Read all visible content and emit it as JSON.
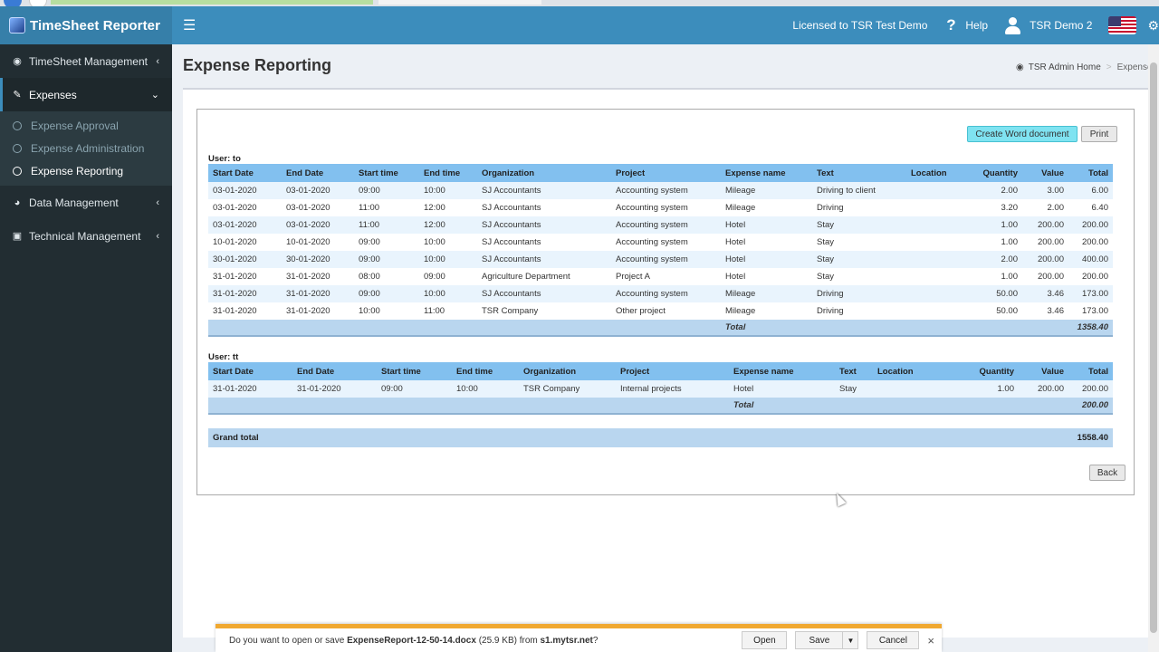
{
  "app": {
    "name": "TimeSheet Reporter",
    "license": "Licensed to TSR Test Demo",
    "help_label": "Help",
    "user_name": "TSR Demo 2",
    "burger_icon": "menu-icon",
    "flag_icon": "us-flag-icon"
  },
  "sidebar": {
    "items": [
      {
        "label": "TimeSheet Management",
        "icon": "dashboard-icon"
      },
      {
        "label": "Expenses",
        "icon": "edit-icon"
      },
      {
        "label": "Data Management",
        "icon": "pie-chart-icon"
      },
      {
        "label": "Technical Management",
        "icon": "laptop-icon"
      }
    ],
    "expenses_sub": [
      "Expense Approval",
      "Expense Administration",
      "Expense Reporting"
    ]
  },
  "page": {
    "title": "Expense Reporting",
    "breadcrumb_home": "TSR Admin Home",
    "breadcrumb_current": "Expenses"
  },
  "report": {
    "word_button": "Create Word document",
    "print_button": "Print",
    "back_button": "Back",
    "columns": [
      "Start Date",
      "End Date",
      "Start time",
      "End time",
      "Organization",
      "Project",
      "Expense name",
      "Text",
      "Location",
      "Quantity",
      "Value",
      "Total"
    ],
    "total_label": "Total",
    "grand_total_label": "Grand total",
    "grand_total_value": "1558.40",
    "groups": [
      {
        "user": "User: to",
        "total": "1358.40",
        "rows": [
          [
            "03-01-2020",
            "03-01-2020",
            "09:00",
            "10:00",
            "SJ Accountants",
            "Accounting system",
            "Mileage",
            "Driving to client",
            "",
            "2.00",
            "3.00",
            "6.00"
          ],
          [
            "03-01-2020",
            "03-01-2020",
            "11:00",
            "12:00",
            "SJ Accountants",
            "Accounting system",
            "Mileage",
            "Driving",
            "",
            "3.20",
            "2.00",
            "6.40"
          ],
          [
            "03-01-2020",
            "03-01-2020",
            "11:00",
            "12:00",
            "SJ Accountants",
            "Accounting system",
            "Hotel",
            "Stay",
            "",
            "1.00",
            "200.00",
            "200.00"
          ],
          [
            "10-01-2020",
            "10-01-2020",
            "09:00",
            "10:00",
            "SJ Accountants",
            "Accounting system",
            "Hotel",
            "Stay",
            "",
            "1.00",
            "200.00",
            "200.00"
          ],
          [
            "30-01-2020",
            "30-01-2020",
            "09:00",
            "10:00",
            "SJ Accountants",
            "Accounting system",
            "Hotel",
            "Stay",
            "",
            "2.00",
            "200.00",
            "400.00"
          ],
          [
            "31-01-2020",
            "31-01-2020",
            "08:00",
            "09:00",
            "Agriculture Department",
            "Project A",
            "Hotel",
            "Stay",
            "",
            "1.00",
            "200.00",
            "200.00"
          ],
          [
            "31-01-2020",
            "31-01-2020",
            "09:00",
            "10:00",
            "SJ Accountants",
            "Accounting system",
            "Mileage",
            "Driving",
            "",
            "50.00",
            "3.46",
            "173.00"
          ],
          [
            "31-01-2020",
            "31-01-2020",
            "10:00",
            "11:00",
            "TSR Company",
            "Other project",
            "Mileage",
            "Driving",
            "",
            "50.00",
            "3.46",
            "173.00"
          ]
        ]
      },
      {
        "user": "User: tt",
        "total": "200.00",
        "rows": [
          [
            "31-01-2020",
            "31-01-2020",
            "09:00",
            "10:00",
            "TSR Company",
            "Internal projects",
            "Hotel",
            "Stay",
            "",
            "1.00",
            "200.00",
            "200.00"
          ]
        ]
      }
    ]
  },
  "download": {
    "prefix": "Do you want to open or save ",
    "filename": "ExpenseReport-12-50-14.docx",
    "size": " (25.9 KB) from ",
    "source": "s1.mytsr.net",
    "suffix": "?",
    "open": "Open",
    "save": "Save",
    "cancel": "Cancel",
    "close": "×"
  }
}
